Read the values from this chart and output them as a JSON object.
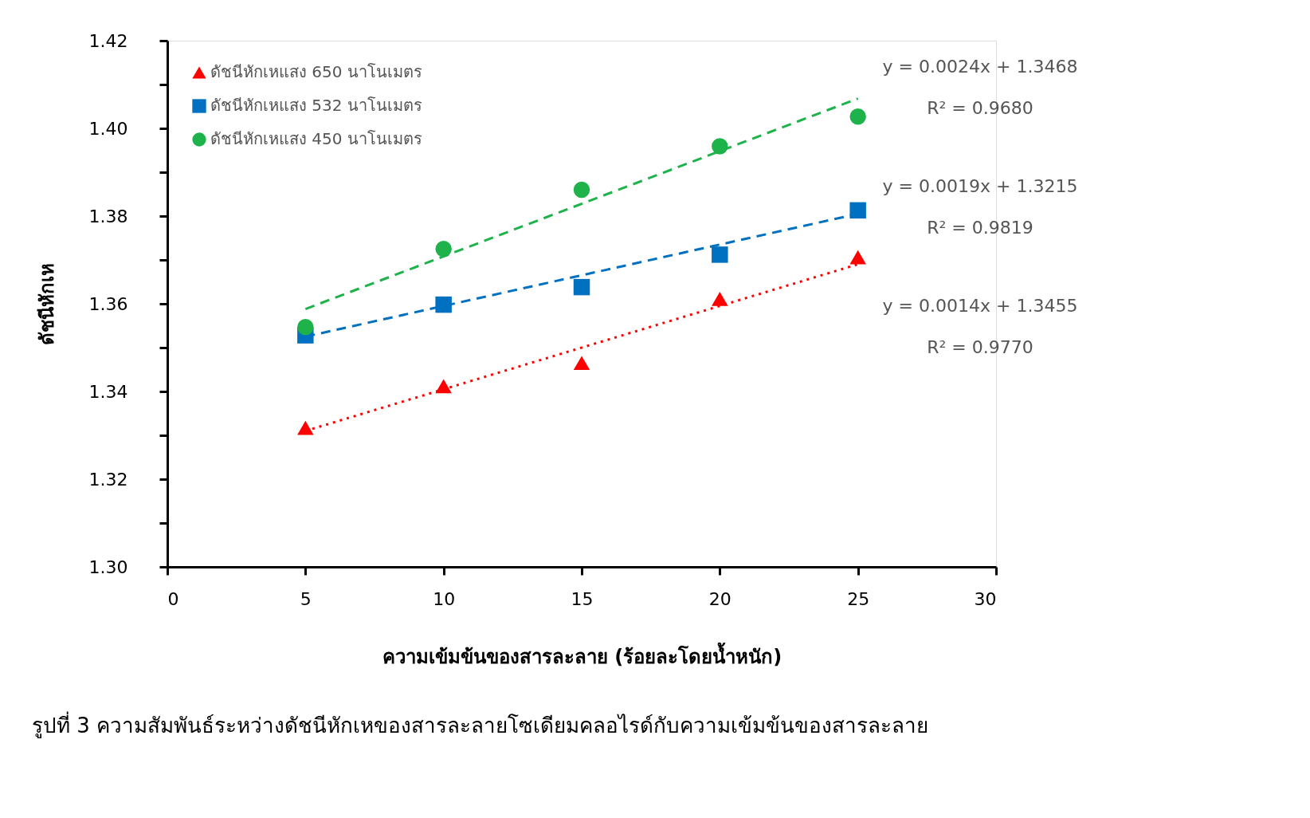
{
  "chart_data": {
    "type": "scatter",
    "xlabel": "ความเข้มข้นของสารละลาย (ร้อยละโดยน้ำหนัก)",
    "ylabel": "ดัชนีหักเห",
    "x": [
      5,
      10,
      15,
      20,
      25
    ],
    "series": [
      {
        "name": "ดัชนีหักเหแสง 650 นาโนเมตร",
        "color": "#ff0000",
        "marker": "triangle",
        "values": [
          1.3317,
          1.3412,
          1.3465,
          1.3611,
          1.3706
        ]
      },
      {
        "name": "ดัชนีหักเหแสง 532 นาโนเมตร",
        "color": "#0070c0",
        "marker": "square",
        "values": [
          1.3528,
          1.3598,
          1.3638,
          1.3712,
          1.3813
        ]
      },
      {
        "name": "ดัชนีหักเหแสง 450 นาโนเมตร",
        "color": "#1db34a",
        "marker": "circle",
        "values": [
          1.3547,
          1.3725,
          1.386,
          1.3959,
          1.4027
        ]
      },
      {
        "type": "line",
        "color": "#1db34a",
        "line_style": "dashed",
        "values": [
          1.3588,
          1.3708,
          1.3828,
          1.3948,
          1.4068
        ]
      },
      {
        "type": "line",
        "color": "#0070c0",
        "line_style": "dashed",
        "values": [
          1.3525,
          1.3595,
          1.3665,
          1.3735,
          1.3805
        ]
      },
      {
        "type": "line",
        "color": "#ff0000",
        "line_style": "dotted",
        "values": [
          1.331,
          1.3405,
          1.35,
          1.3595,
          1.369
        ]
      }
    ],
    "xlim": [
      0,
      30
    ],
    "xticks": [
      0,
      5,
      10,
      15,
      20,
      25,
      30
    ],
    "ylim": [
      1.3,
      1.42
    ],
    "yticks": [
      {
        "value": 1.3,
        "label": "1.30"
      },
      {
        "value": 1.31,
        "label": null
      },
      {
        "value": 1.32,
        "label": "1.32"
      },
      {
        "value": 1.33,
        "label": null
      },
      {
        "value": 1.34,
        "label": "1.34"
      },
      {
        "value": 1.35,
        "label": null
      },
      {
        "value": 1.36,
        "label": "1.36"
      },
      {
        "value": 1.37,
        "label": null
      },
      {
        "value": 1.38,
        "label": "1.38"
      },
      {
        "value": 1.39,
        "label": null
      },
      {
        "value": 1.4,
        "label": "1.40"
      },
      {
        "value": 1.41,
        "label": null
      },
      {
        "value": 1.42,
        "label": "1.42"
      }
    ],
    "grid": false,
    "legend": "top left",
    "annotations": [
      "y = 0.0024x + 1.3468",
      "R² = 0.9680",
      "y = 0.0019x + 1.3215",
      "R² = 0.9819",
      "y = 0.0014x + 1.3455",
      "R² = 0.9770",
      "รูปที่ 3  ความสัมพันธ์ระหว่างดัชนีหักเหของสารละลายโซเดียมคลอไรด์กับความเข้มข้นของสารละลาย"
    ]
  }
}
